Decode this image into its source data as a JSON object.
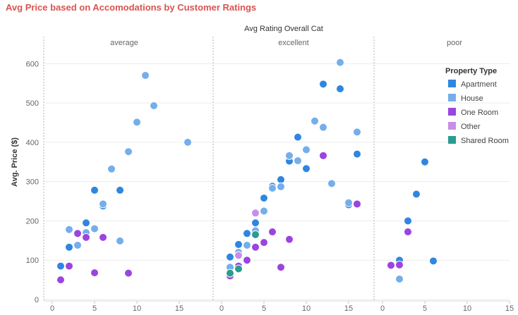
{
  "title": "Avg Price based on Accomodations by Customer Ratings",
  "chart_data": {
    "type": "scatter",
    "facet_title": "Avg Rating Overall Cat",
    "ylabel": "Avg. Price ($)",
    "ylim": [
      0,
      640
    ],
    "yticks": [
      0,
      100,
      200,
      300,
      400,
      500,
      600
    ],
    "xlim": [
      -1,
      18
    ],
    "xticks": [
      0,
      5,
      10,
      15
    ],
    "legend": {
      "title": "Property Type",
      "position": "top-right",
      "entries": [
        {
          "name": "Apartment",
          "color": "#2f86e0"
        },
        {
          "name": "House",
          "color": "#74aeeb"
        },
        {
          "name": "One Room",
          "color": "#9b44e0"
        },
        {
          "name": "Other",
          "color": "#c98ee8"
        },
        {
          "name": "Shared Room",
          "color": "#2a9d8f"
        }
      ]
    },
    "panels": [
      {
        "name": "average",
        "series": [
          {
            "name": "Apartment",
            "points": [
              [
                1,
                85
              ],
              [
                2,
                133
              ],
              [
                3,
                138
              ],
              [
                4,
                195
              ],
              [
                5,
                278
              ],
              [
                6,
                238
              ],
              [
                8,
                278
              ]
            ]
          },
          {
            "name": "House",
            "points": [
              [
                2,
                178
              ],
              [
                3,
                138
              ],
              [
                4,
                170
              ],
              [
                5,
                180
              ],
              [
                6,
                243
              ],
              [
                7,
                332
              ],
              [
                8,
                149
              ],
              [
                9,
                376
              ],
              [
                10,
                451
              ],
              [
                11,
                570
              ],
              [
                12,
                493
              ],
              [
                16,
                400
              ]
            ]
          },
          {
            "name": "One Room",
            "points": [
              [
                1,
                50
              ],
              [
                2,
                85
              ],
              [
                3,
                168
              ],
              [
                4,
                158
              ],
              [
                5,
                68
              ],
              [
                6,
                158
              ],
              [
                9,
                67
              ]
            ]
          }
        ]
      },
      {
        "name": "excellent",
        "series": [
          {
            "name": "Apartment",
            "points": [
              [
                1,
                108
              ],
              [
                2,
                140
              ],
              [
                3,
                168
              ],
              [
                4,
                195
              ],
              [
                5,
                258
              ],
              [
                6,
                288
              ],
              [
                7,
                305
              ],
              [
                8,
                352
              ],
              [
                9,
                413
              ],
              [
                10,
                333
              ],
              [
                12,
                548
              ],
              [
                14,
                536
              ],
              [
                15,
                241
              ],
              [
                16,
                370
              ]
            ]
          },
          {
            "name": "House",
            "points": [
              [
                1,
                82
              ],
              [
                2,
                120
              ],
              [
                3,
                138
              ],
              [
                4,
                175
              ],
              [
                5,
                225
              ],
              [
                6,
                283
              ],
              [
                7,
                287
              ],
              [
                8,
                366
              ],
              [
                9,
                353
              ],
              [
                10,
                381
              ],
              [
                11,
                454
              ],
              [
                12,
                438
              ],
              [
                13,
                295
              ],
              [
                14,
                603
              ],
              [
                15,
                246
              ],
              [
                16,
                426
              ]
            ]
          },
          {
            "name": "One Room",
            "points": [
              [
                1,
                60
              ],
              [
                2,
                85
              ],
              [
                3,
                100
              ],
              [
                4,
                133
              ],
              [
                5,
                145
              ],
              [
                6,
                172
              ],
              [
                7,
                82
              ],
              [
                8,
                153
              ],
              [
                12,
                366
              ],
              [
                16,
                243
              ]
            ]
          },
          {
            "name": "Other",
            "points": [
              [
                2,
                112
              ],
              [
                4,
                220
              ]
            ]
          },
          {
            "name": "Shared Room",
            "points": [
              [
                1,
                67
              ],
              [
                2,
                78
              ],
              [
                4,
                165
              ]
            ]
          }
        ]
      },
      {
        "name": "poor",
        "series": [
          {
            "name": "Apartment",
            "points": [
              [
                2,
                100
              ],
              [
                3,
                200
              ],
              [
                4,
                268
              ],
              [
                5,
                350
              ],
              [
                6,
                98
              ]
            ]
          },
          {
            "name": "House",
            "points": [
              [
                2,
                52
              ]
            ]
          },
          {
            "name": "One Room",
            "points": [
              [
                1,
                87
              ],
              [
                2,
                88
              ],
              [
                3,
                172
              ]
            ]
          }
        ]
      }
    ]
  }
}
